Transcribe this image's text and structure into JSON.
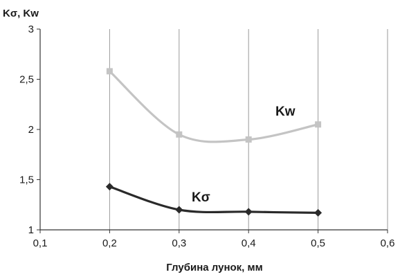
{
  "chart_data": {
    "type": "line",
    "xlabel": "Глубина лунок, мм",
    "ylabel": "Kσ, Kw",
    "xlim": [
      0.1,
      0.6
    ],
    "ylim": [
      1,
      3
    ],
    "xticks": [
      "0,1",
      "0,2",
      "0,3",
      "0,4",
      "0,5",
      "0,6"
    ],
    "yticks": [
      "1",
      "1,5",
      "2",
      "2,5",
      "3"
    ],
    "grid": "vertical",
    "series": [
      {
        "name": "Kw",
        "x": [
          0.2,
          0.3,
          0.4,
          0.5
        ],
        "y": [
          2.58,
          1.95,
          1.9,
          2.05
        ],
        "color": "#c4c4c4",
        "marker": "square",
        "smooth": true
      },
      {
        "name": "Kσ",
        "x": [
          0.2,
          0.3,
          0.4,
          0.5
        ],
        "y": [
          1.43,
          1.2,
          1.18,
          1.17
        ],
        "color": "#2a2a2a",
        "marker": "diamond",
        "smooth": true
      }
    ]
  }
}
